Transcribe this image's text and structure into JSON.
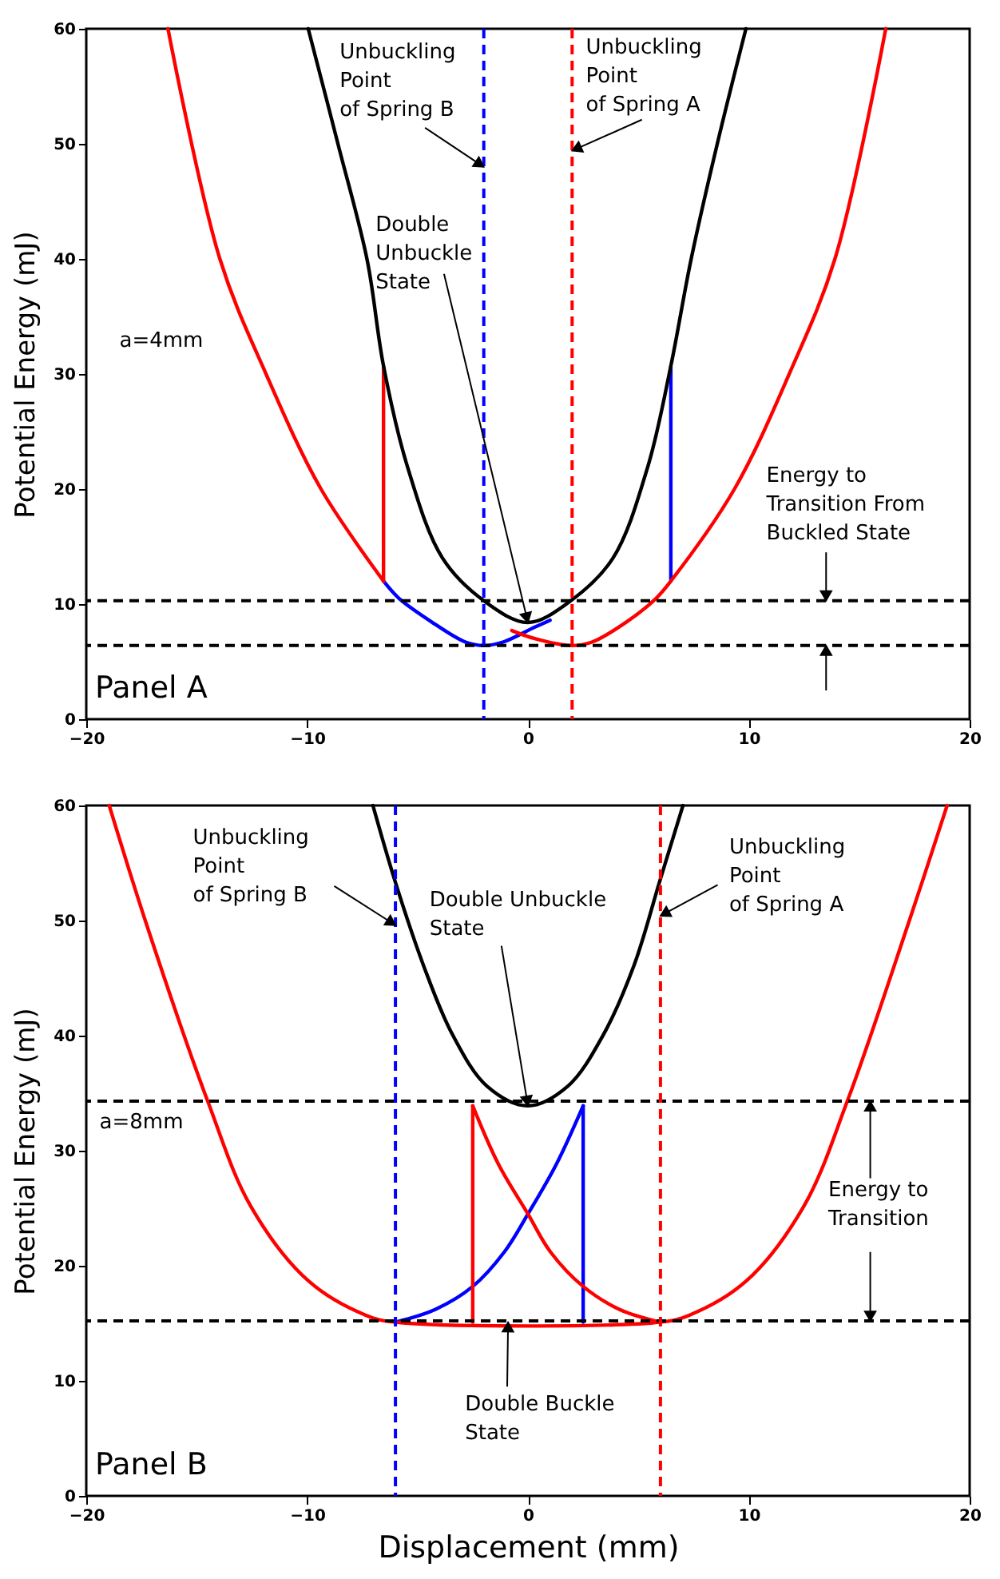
{
  "chart_data": [
    {
      "type": "line",
      "ylabel": "Potential Energy (mJ)",
      "xlim": [
        -20,
        20
      ],
      "ylim": [
        0,
        60
      ],
      "xticks": [
        -20,
        -10,
        0,
        10,
        20
      ],
      "yticks": [
        0,
        10,
        20,
        30,
        40,
        50,
        60
      ],
      "grid": false,
      "series": [
        {
          "color": "#0000ff",
          "x": [
            -6.54,
            -5.84,
            -4.4,
            -2.83,
            -2.0,
            -1.13,
            0.31,
            1.0
          ],
          "values": [
            12,
            10.5,
            8.5,
            6.7,
            6.4,
            6.7,
            8.0,
            8.6
          ]
        },
        {
          "color": "#0000ff",
          "x": [
            6.47,
            6.47
          ],
          "values": [
            30.7,
            12
          ]
        },
        {
          "color": "#ff0000",
          "x": [
            -16.3,
            -13.95,
            -11.86,
            -9.37,
            -6.54
          ],
          "values": [
            60,
            40,
            30,
            20,
            12
          ]
        },
        {
          "color": "#ff0000",
          "x": [
            -6.54,
            -6.54
          ],
          "values": [
            12,
            30.7
          ]
        },
        {
          "color": "#ff0000",
          "x": [
            -0.73,
            0.31,
            1.94,
            2.9,
            4.5,
            5.8,
            6.47,
            9.35,
            11.83,
            13.9,
            16.2
          ],
          "values": [
            7.7,
            7.0,
            6.4,
            6.7,
            8.5,
            10.5,
            12,
            20,
            30,
            40,
            60
          ]
        },
        {
          "color": "#000000",
          "x": [
            -9.95,
            -8.59,
            -7.28,
            -6.54,
            -5.45,
            -3.87,
            -2.0,
            0,
            1.94,
            3.85,
            5.42,
            6.47,
            7.38,
            8.56,
            9.87
          ],
          "values": [
            60,
            49.9,
            39.9,
            30.7,
            21.9,
            14,
            10.3,
            8.4,
            10.3,
            14,
            21.9,
            30.7,
            39.9,
            49.9,
            60
          ]
        }
      ],
      "ref_lines": [
        {
          "axis": "y",
          "value": 10.3,
          "color": "#000000",
          "line_style": "dashed"
        },
        {
          "axis": "y",
          "value": 6.4,
          "color": "#000000",
          "line_style": "dashed"
        },
        {
          "axis": "x",
          "value": -2,
          "color": "#0000ff",
          "line_style": "dashed"
        },
        {
          "axis": "x",
          "value": 2,
          "color": "#ff0000",
          "line_style": "dashed"
        }
      ],
      "annotations": [
        {
          "text": "Unbuckling\nPoint\nof Spring B",
          "x": -2,
          "y": 48
        },
        {
          "text": "Unbuckling\nPoint\nof Spring A",
          "x": 2,
          "y": 49.4
        },
        {
          "text": "Double\nUnbuckle\nState",
          "x": 0,
          "y": 8.4
        },
        "a=4mm",
        {
          "text": "Energy to\nTransition From\nBuckled State",
          "x": 13.5,
          "y": 10.3
        },
        "Panel A"
      ]
    },
    {
      "type": "line",
      "xlabel": "Displacement (mm)",
      "ylabel": "Potential Energy (mJ)",
      "xlim": [
        -20,
        20
      ],
      "ylim": [
        0,
        60
      ],
      "xticks": [
        -20,
        -10,
        0,
        10,
        20
      ],
      "yticks": [
        0,
        10,
        20,
        30,
        40,
        50,
        60
      ],
      "grid": false,
      "series": [
        {
          "color": "#0000ff",
          "x": [
            -6,
            -4.2,
            -2.5,
            -1.07,
            0,
            1.28,
            2.5
          ],
          "values": [
            15.1,
            16.2,
            18.2,
            21.2,
            24.5,
            28.8,
            33.9
          ]
        },
        {
          "color": "#0000ff",
          "x": [
            2.5,
            2.5
          ],
          "values": [
            33.9,
            15.1
          ]
        },
        {
          "color": "#ff0000",
          "x": [
            -18.96,
            -17.26,
            -14.5,
            -12.56,
            -9.95,
            -7.34,
            -6.0,
            5.98,
            7.3,
            9.9,
            12.5,
            14.46,
            17.2,
            18.98
          ],
          "values": [
            60,
            49.6,
            34.3,
            25.2,
            18.7,
            15.7,
            15.1,
            15.1,
            15.7,
            18.7,
            25.2,
            34.3,
            49.6,
            60
          ]
        },
        {
          "color": "#ff0000",
          "x": [
            -2.5,
            -2.5
          ],
          "values": [
            15.1,
            33.9
          ]
        },
        {
          "color": "#ff0000",
          "x": [
            -2.5,
            -1.33,
            0,
            1.02,
            2.5,
            4.15,
            5.98
          ],
          "values": [
            33.9,
            28.8,
            24.5,
            21.2,
            18.2,
            16.2,
            15.1
          ]
        },
        {
          "color": "#000000",
          "x": [
            -7.02,
            -6.03,
            -4.73,
            -3.42,
            -1.85,
            0,
            1.8,
            3.42,
            4.8,
            5.98,
            7.02
          ],
          "values": [
            60,
            53.5,
            46.1,
            40.1,
            35.6,
            33.9,
            35.6,
            40.1,
            46.1,
            53.5,
            60
          ]
        }
      ],
      "ref_lines": [
        {
          "axis": "y",
          "value": 34.3,
          "color": "#000000",
          "line_style": "dashed"
        },
        {
          "axis": "y",
          "value": 15.2,
          "color": "#000000",
          "line_style": "dashed"
        },
        {
          "axis": "x",
          "value": -6,
          "color": "#0000ff",
          "line_style": "dashed"
        },
        {
          "axis": "x",
          "value": 6,
          "color": "#ff0000",
          "line_style": "dashed"
        }
      ],
      "annotations": [
        {
          "text": "Unbuckling\nPoint\nof Spring B",
          "x": -6,
          "y": 49.6
        },
        {
          "text": "Unbuckling\nPoint\nof Spring A",
          "x": 6,
          "y": 50.4
        },
        {
          "text": "Double Unbuckle\nState",
          "x": 0,
          "y": 33.9
        },
        "a=8mm",
        {
          "text": "Energy to\nTransition",
          "x": 15.5,
          "y": 34.3
        },
        {
          "text": "Double Buckle\nState",
          "x": -0.9,
          "y": 15.1
        },
        "Panel B"
      ]
    }
  ]
}
